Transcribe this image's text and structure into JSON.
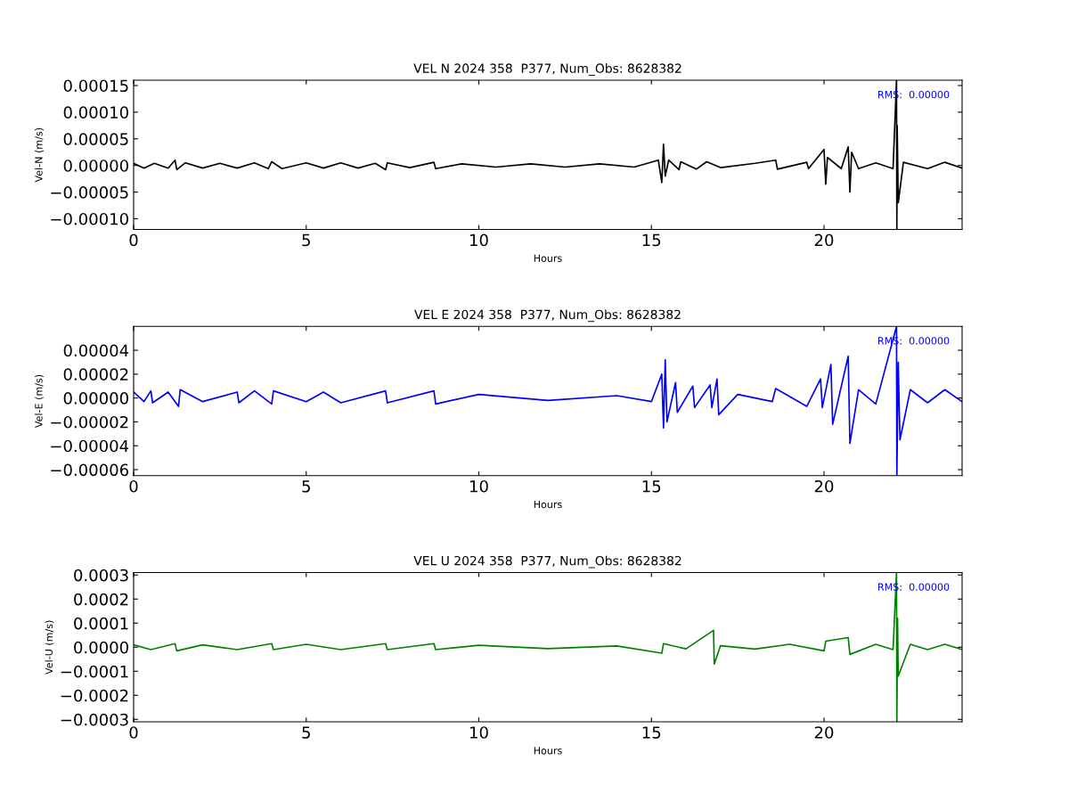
{
  "chart_data": [
    {
      "type": "line",
      "title": "VEL N 2024 358  P377, Num_Obs: 8628382",
      "xlabel": "Hours",
      "ylabel": "Vel-N (m/s)",
      "annotations": [
        "RMS:  0.00000"
      ],
      "xlim": [
        0,
        24
      ],
      "xticks": [
        0,
        5,
        10,
        15,
        20
      ],
      "ylim": [
        -0.00012,
        0.00016
      ],
      "yticks": [
        {
          "value": -0.0001,
          "label": "−0.00010"
        },
        {
          "value": -5e-05,
          "label": "−0.00005"
        },
        {
          "value": 0,
          "label": "0.00000"
        },
        {
          "value": 5e-05,
          "label": "0.00005"
        },
        {
          "value": 0.0001,
          "label": "0.00010"
        },
        {
          "value": 0.00015,
          "label": "0.00015"
        }
      ],
      "series": [
        {
          "color": "#000000",
          "x": [
            0,
            0.3,
            0.6,
            1.0,
            1.2,
            1.25,
            1.5,
            2.0,
            2.5,
            3.0,
            3.5,
            3.9,
            4.0,
            4.3,
            5.0,
            5.5,
            6.0,
            6.5,
            7.0,
            7.3,
            7.35,
            8.0,
            8.7,
            8.75,
            9.5,
            10.5,
            11.5,
            12.5,
            13.5,
            14.5,
            15.2,
            15.3,
            15.35,
            15.4,
            15.5,
            15.8,
            15.85,
            16.3,
            16.6,
            17.0,
            18.0,
            18.6,
            18.65,
            19.5,
            19.55,
            20.0,
            20.05,
            20.1,
            20.5,
            20.7,
            20.75,
            20.8,
            21.0,
            21.5,
            22.0,
            22.1,
            22.11,
            22.12,
            22.15,
            22.3,
            23.0,
            23.5,
            24.0
          ],
          "values": [
            4e-06,
            -5e-06,
            4e-06,
            -5e-06,
            1e-05,
            -8e-06,
            5e-06,
            -5e-06,
            4e-06,
            -5e-06,
            5e-06,
            -6e-06,
            7e-06,
            -6e-06,
            5e-06,
            -5e-06,
            5e-06,
            -5e-06,
            4e-06,
            -8e-06,
            5e-06,
            -4e-06,
            6e-06,
            -6e-06,
            3e-06,
            -3e-06,
            3e-06,
            -3e-06,
            3e-06,
            -3e-06,
            1e-05,
            -3.2e-05,
            4e-05,
            -2e-05,
            1e-05,
            -8e-06,
            7e-06,
            -7e-06,
            7e-06,
            -4e-06,
            4e-06,
            1e-05,
            -7e-06,
            6e-06,
            -6e-06,
            3e-05,
            -3.5e-05,
            1.5e-05,
            -6e-06,
            3.5e-05,
            -5e-05,
            2.5e-05,
            -6e-06,
            5e-06,
            -6e-06,
            0.00016,
            -0.00012,
            7.5e-05,
            -7e-05,
            6e-06,
            -6e-06,
            6e-06,
            -5e-06
          ]
        }
      ]
    },
    {
      "type": "line",
      "title": "VEL E 2024 358  P377, Num_Obs: 8628382",
      "xlabel": "Hours",
      "ylabel": "Vel-E (m/s)",
      "annotations": [
        "RMS:  0.00000"
      ],
      "xlim": [
        0,
        24
      ],
      "xticks": [
        0,
        5,
        10,
        15,
        20
      ],
      "ylim": [
        -6.5e-05,
        6e-05
      ],
      "yticks": [
        {
          "value": -6e-05,
          "label": "−0.00006"
        },
        {
          "value": -4e-05,
          "label": "−0.00004"
        },
        {
          "value": -2e-05,
          "label": "−0.00002"
        },
        {
          "value": 0,
          "label": "0.00000"
        },
        {
          "value": 2e-05,
          "label": "0.00002"
        },
        {
          "value": 4e-05,
          "label": "0.00004"
        }
      ],
      "series": [
        {
          "color": "#0000ff",
          "x": [
            0,
            0.3,
            0.5,
            0.55,
            1.0,
            1.3,
            1.35,
            2.0,
            3.0,
            3.05,
            3.5,
            4.0,
            4.05,
            5.0,
            5.5,
            6.0,
            7.3,
            7.35,
            8.7,
            8.75,
            10,
            12,
            14,
            15.0,
            15.3,
            15.35,
            15.4,
            15.45,
            15.7,
            15.75,
            16.2,
            16.25,
            16.7,
            16.75,
            16.9,
            16.95,
            17.5,
            18.5,
            18.6,
            19.5,
            19.9,
            19.95,
            20.2,
            20.25,
            20.7,
            20.75,
            21.0,
            21.5,
            22.1,
            22.11,
            22.15,
            22.2,
            22.5,
            23.0,
            23.5,
            24
          ],
          "values": [
            5e-06,
            -3e-06,
            6e-06,
            -4e-06,
            5e-06,
            -7e-06,
            7e-06,
            -3e-06,
            5e-06,
            -4e-06,
            6e-06,
            -5e-06,
            6e-06,
            -3e-06,
            5e-06,
            -4e-06,
            6e-06,
            -4e-06,
            6e-06,
            -5e-06,
            3e-06,
            -2e-06,
            2e-06,
            -3e-06,
            2e-05,
            -2.5e-05,
            3.2e-05,
            -2e-05,
            1.3e-05,
            -1.2e-05,
            1e-05,
            -8e-06,
            1.1e-05,
            -8e-06,
            1.6e-05,
            -1.4e-05,
            3e-06,
            -3e-06,
            8e-06,
            -7e-06,
            1.6e-05,
            -8e-06,
            2.8e-05,
            -2.2e-05,
            3.5e-05,
            -3.8e-05,
            7e-06,
            -5e-06,
            6e-05,
            -6.5e-05,
            3e-05,
            -3.5e-05,
            7e-06,
            -4e-06,
            7e-06,
            -3e-06
          ]
        }
      ]
    },
    {
      "type": "line",
      "title": "VEL U 2024 358  P377, Num_Obs: 8628382",
      "xlabel": "Hours",
      "ylabel": "Vel-U (m/s)",
      "annotations": [
        "RMS:  0.00000"
      ],
      "xlim": [
        0,
        24
      ],
      "xticks": [
        0,
        5,
        10,
        15,
        20
      ],
      "ylim": [
        -0.00031,
        0.00031
      ],
      "yticks": [
        {
          "value": -0.0003,
          "label": "−0.0003"
        },
        {
          "value": -0.0002,
          "label": "−0.0002"
        },
        {
          "value": -0.0001,
          "label": "−0.0001"
        },
        {
          "value": 0,
          "label": "0.0000"
        },
        {
          "value": 0.0001,
          "label": "0.0001"
        },
        {
          "value": 0.0002,
          "label": "0.0002"
        },
        {
          "value": 0.0003,
          "label": "0.0003"
        }
      ],
      "series": [
        {
          "color": "#008000",
          "x": [
            0,
            0.5,
            1.2,
            1.25,
            2,
            3,
            4,
            4.05,
            5,
            6,
            7.3,
            7.35,
            8.7,
            8.75,
            10,
            12,
            14,
            15.3,
            15.35,
            16.0,
            16.8,
            16.82,
            17,
            18,
            19,
            20,
            20.05,
            20.7,
            20.75,
            21.5,
            22.0,
            22.1,
            22.11,
            22.13,
            22.15,
            22.5,
            23,
            23.5,
            24
          ],
          "values": [
            1e-05,
            -1e-05,
            1.5e-05,
            -1.5e-05,
            1e-05,
            -1e-05,
            1.5e-05,
            -1e-05,
            1.2e-05,
            -1e-05,
            1.5e-05,
            -1e-05,
            1.5e-05,
            -1e-05,
            8e-06,
            -6e-06,
            5e-06,
            -2.5e-05,
            1.5e-05,
            -7e-06,
            7e-05,
            -7e-05,
            6e-06,
            -8e-06,
            1.2e-05,
            -1.5e-05,
            2.5e-05,
            4e-05,
            -3e-05,
            1.2e-05,
            -1e-05,
            0.00031,
            -0.00031,
            0.00012,
            -0.00012,
            1.2e-05,
            -1e-05,
            1.2e-05,
            -1e-05
          ]
        }
      ]
    }
  ]
}
